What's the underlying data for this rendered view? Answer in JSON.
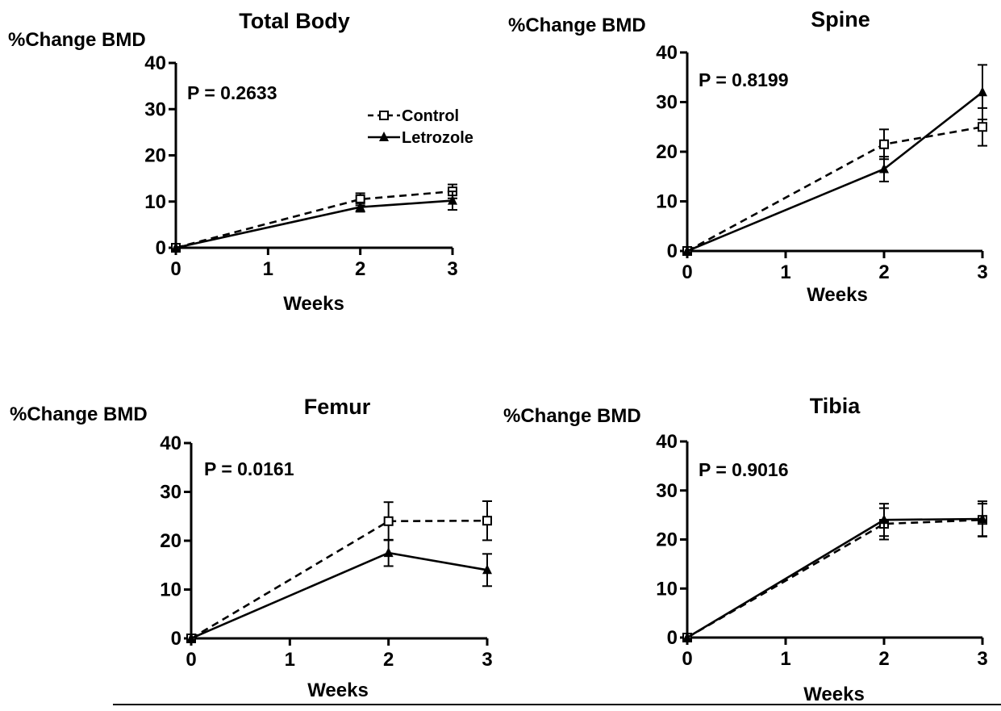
{
  "chart_data": [
    {
      "type": "line",
      "title": "Total Body",
      "ylabel": "%Change BMD",
      "xlabel": "Weeks",
      "ylim": [
        0,
        40
      ],
      "yticks": [
        0,
        10,
        20,
        30,
        40
      ],
      "xlim": [
        0,
        3
      ],
      "xticks": [
        0,
        1,
        2,
        3
      ],
      "annotation": "P = 0.2633",
      "legend": "top-right",
      "series": [
        {
          "name": "Control",
          "style": "dashed",
          "marker": "open-square",
          "x": [
            0,
            2,
            3
          ],
          "values": [
            0,
            10.5,
            12.2
          ],
          "errors": [
            0,
            1.3,
            1.5
          ]
        },
        {
          "name": "Letrozole",
          "style": "solid",
          "marker": "filled-triangle",
          "x": [
            0,
            2,
            3
          ],
          "values": [
            0,
            8.8,
            10.2
          ],
          "errors": [
            0,
            1.0,
            2.0
          ]
        }
      ]
    },
    {
      "type": "line",
      "title": "Spine",
      "ylabel": "%Change BMD",
      "xlabel": "Weeks",
      "ylim": [
        0,
        40
      ],
      "yticks": [
        0,
        10,
        20,
        30,
        40
      ],
      "xlim": [
        0,
        3
      ],
      "xticks": [
        0,
        1,
        2,
        3
      ],
      "annotation": "P = 0.8199",
      "series": [
        {
          "name": "Control",
          "style": "dashed",
          "marker": "open-square",
          "x": [
            0,
            2,
            3
          ],
          "values": [
            0,
            21.5,
            25
          ],
          "errors": [
            0,
            3.0,
            3.8
          ]
        },
        {
          "name": "Letrozole",
          "style": "solid",
          "marker": "filled-triangle",
          "x": [
            0,
            2,
            3
          ],
          "values": [
            0,
            16.5,
            32
          ],
          "errors": [
            0,
            2.5,
            5.5
          ]
        }
      ]
    },
    {
      "type": "line",
      "title": "Femur",
      "ylabel": "%Change BMD",
      "xlabel": "Weeks",
      "ylim": [
        0,
        40
      ],
      "yticks": [
        0,
        10,
        20,
        30,
        40
      ],
      "xlim": [
        0,
        3
      ],
      "xticks": [
        0,
        1,
        2,
        3
      ],
      "annotation": "P = 0.0161",
      "series": [
        {
          "name": "Control",
          "style": "dashed",
          "marker": "open-square",
          "x": [
            0,
            2,
            3
          ],
          "values": [
            0,
            24,
            24.1
          ],
          "errors": [
            0,
            3.9,
            4.0
          ]
        },
        {
          "name": "Letrozole",
          "style": "solid",
          "marker": "filled-triangle",
          "x": [
            0,
            2,
            3
          ],
          "values": [
            0,
            17.5,
            14
          ],
          "errors": [
            0,
            2.7,
            3.3
          ]
        }
      ]
    },
    {
      "type": "line",
      "title": "Tibia",
      "ylabel": "%Change BMD",
      "xlabel": "Weeks",
      "ylim": [
        0,
        40
      ],
      "yticks": [
        0,
        10,
        20,
        30,
        40
      ],
      "xlim": [
        0,
        3
      ],
      "xticks": [
        0,
        1,
        2,
        3
      ],
      "annotation": "P = 0.9016",
      "series": [
        {
          "name": "Control",
          "style": "dashed",
          "marker": "open-square",
          "x": [
            0,
            2,
            3
          ],
          "values": [
            0,
            23.2,
            24
          ],
          "errors": [
            0,
            3.2,
            3.3
          ]
        },
        {
          "name": "Letrozole",
          "style": "solid",
          "marker": "filled-triangle",
          "x": [
            0,
            2,
            3
          ],
          "values": [
            0,
            24,
            24.2
          ],
          "errors": [
            0,
            3.3,
            3.6
          ]
        }
      ]
    }
  ]
}
